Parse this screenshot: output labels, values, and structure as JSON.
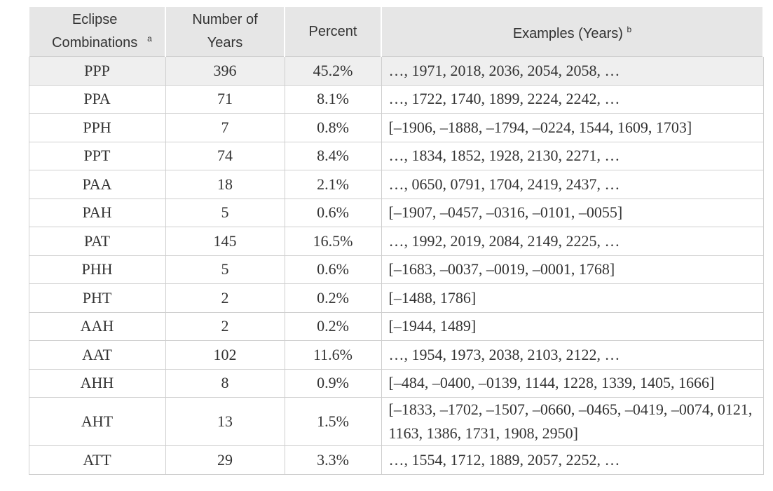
{
  "table": {
    "header": [
      {
        "text": "Eclipse Combinations",
        "sup": "a"
      },
      {
        "text": "Number of Years"
      },
      {
        "text": "Percent"
      },
      {
        "text": "Examples (Years)",
        "sup": "b"
      }
    ],
    "rows": [
      [
        "PPP",
        "396",
        "45.2%",
        "…, 1971, 2018, 2036, 2054, 2058, …"
      ],
      [
        "PPA",
        "71",
        "8.1%",
        "…, 1722, 1740, 1899, 2224, 2242, …"
      ],
      [
        "PPH",
        "7",
        "0.8%",
        "[–1906, –1888, –1794, –0224, 1544, 1609, 1703]"
      ],
      [
        "PPT",
        "74",
        "8.4%",
        "…, 1834, 1852, 1928, 2130, 2271, …"
      ],
      [
        "PAA",
        "18",
        "2.1%",
        "…, 0650, 0791, 1704, 2419, 2437, …"
      ],
      [
        "PAH",
        "5",
        "0.6%",
        "[–1907, –0457, –0316, –0101, –0055]"
      ],
      [
        "PAT",
        "145",
        "16.5%",
        "…, 1992, 2019, 2084, 2149, 2225, …"
      ],
      [
        "PHH",
        "5",
        "0.6%",
        "[–1683, –0037, –0019, –0001, 1768]"
      ],
      [
        "PHT",
        "2",
        "0.2%",
        "[–1488, 1786]"
      ],
      [
        "AAH",
        "2",
        "0.2%",
        "[–1944, 1489]"
      ],
      [
        "AAT",
        "102",
        "11.6%",
        "…, 1954, 1973, 2038, 2103, 2122, …"
      ],
      [
        "AHH",
        "8",
        "0.9%",
        "[–484, –0400, –0139, 1144, 1228, 1339, 1405, 1666]"
      ],
      [
        "AHT",
        "13",
        "1.5%",
        "[–1833, –1702, –1507, –0660, –0465, –0419, –0074, 0121, 1163, 1386, 1731, 1908, 2950]"
      ],
      [
        "ATT",
        "29",
        "3.3%",
        "…, 1554, 1712, 1889, 2057, 2252, …"
      ]
    ]
  }
}
